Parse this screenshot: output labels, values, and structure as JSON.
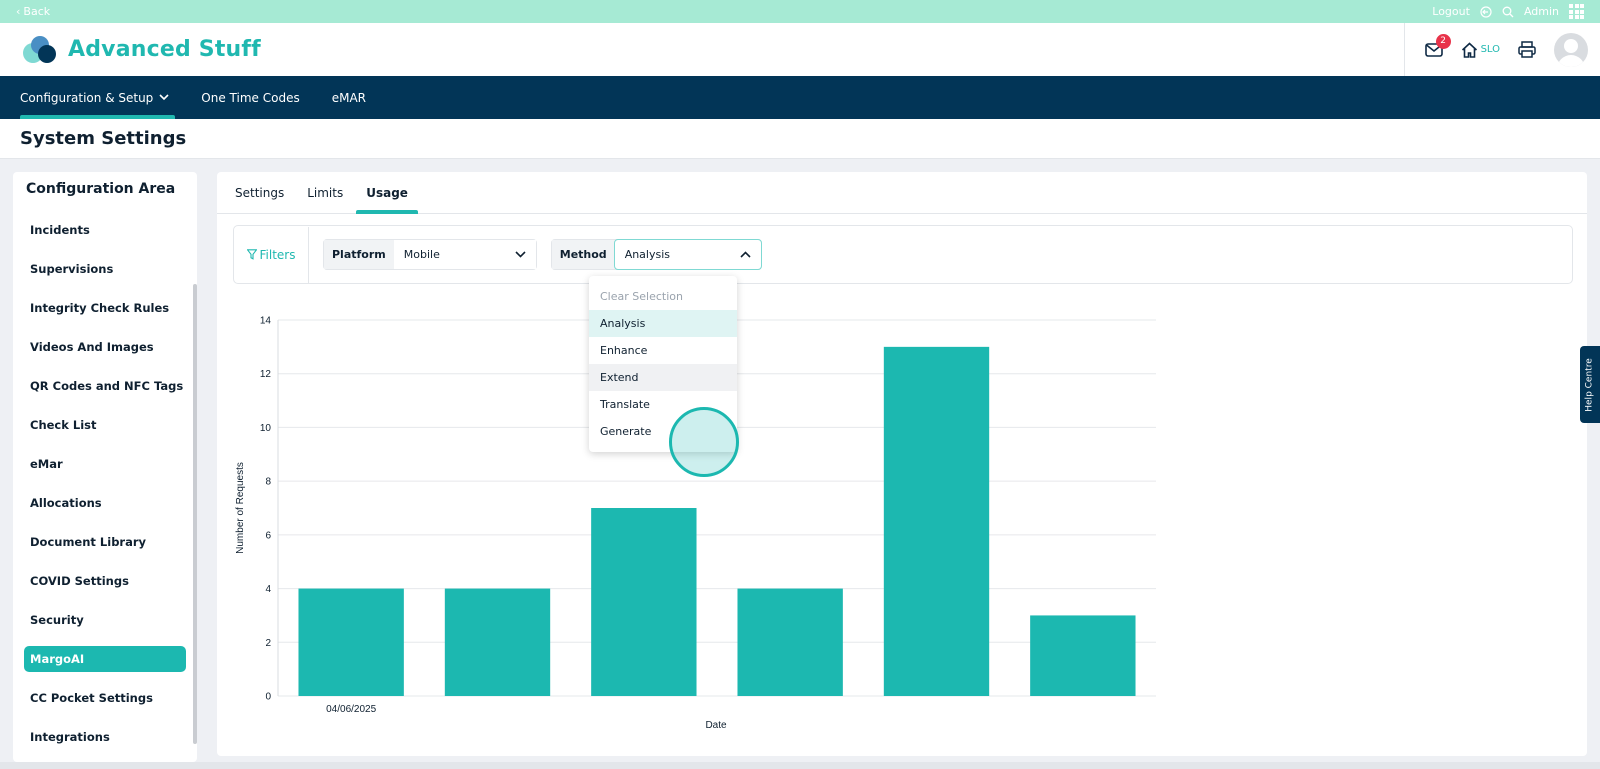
{
  "topbar": {
    "back_label": "Back",
    "logout_label": "Logout",
    "user_label": "Admin"
  },
  "header": {
    "brand": "Advanced Stuff",
    "notifications_count": "2",
    "site_label": "SLO"
  },
  "nav": {
    "items": [
      {
        "label": "Configuration & Setup"
      },
      {
        "label": "One Time Codes"
      },
      {
        "label": "eMAR"
      }
    ]
  },
  "page": {
    "title": "System Settings"
  },
  "sidebar": {
    "title": "Configuration Area",
    "items": [
      {
        "label": "Incidents"
      },
      {
        "label": "Supervisions"
      },
      {
        "label": "Integrity Check Rules"
      },
      {
        "label": "Videos And Images"
      },
      {
        "label": "QR Codes and NFC Tags"
      },
      {
        "label": "Check List"
      },
      {
        "label": "eMar"
      },
      {
        "label": "Allocations"
      },
      {
        "label": "Document Library"
      },
      {
        "label": "COVID Settings"
      },
      {
        "label": "Security"
      },
      {
        "label": "MargoAI"
      },
      {
        "label": "CC Pocket Settings"
      },
      {
        "label": "Integrations"
      }
    ]
  },
  "tabs": [
    {
      "label": "Settings"
    },
    {
      "label": "Limits"
    },
    {
      "label": "Usage"
    }
  ],
  "filters": {
    "label": "Filters",
    "platform": {
      "label": "Platform",
      "value": "Mobile"
    },
    "method": {
      "label": "Method",
      "value": "Analysis"
    }
  },
  "dropdown": {
    "placeholder": "Clear Selection",
    "options": [
      "Analysis",
      "Enhance",
      "Extend",
      "Translate",
      "Generate"
    ]
  },
  "help_label": "Help Centre",
  "colors": {
    "accent": "#1cb8b0",
    "navy": "#023557",
    "topstrip": "#a6ead4"
  },
  "chart_data": {
    "type": "bar",
    "categories": [
      "04/06/2025",
      "",
      "",
      "",
      "",
      ""
    ],
    "values": [
      4,
      4,
      7,
      4,
      13,
      3
    ],
    "xlabel": "Date",
    "ylabel": "Number of Requests",
    "ylim": [
      0,
      14
    ],
    "yticks": [
      0,
      2,
      4,
      6,
      8,
      10,
      12,
      14
    ],
    "grid": true
  }
}
